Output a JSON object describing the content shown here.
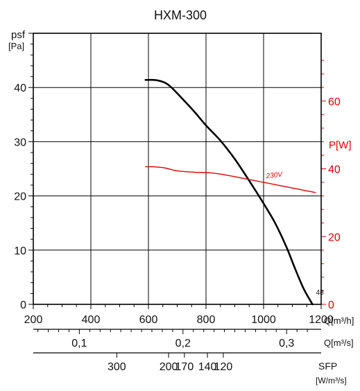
{
  "chart_data": {
    "type": "line",
    "title": "HXM-300",
    "x": {
      "label": "Q[m³/h]",
      "range": [
        200,
        1200
      ],
      "ticks": [
        "200",
        "400",
        "600",
        "800",
        "1000",
        "1200"
      ],
      "tick_values": [
        200,
        400,
        600,
        800,
        1000,
        1200
      ]
    },
    "x2": {
      "label": "Q[m³/s]",
      "ticks": [
        "0,1",
        "0,2",
        "0,3"
      ],
      "tick_values": [
        0.1,
        0.2,
        0.3
      ]
    },
    "sfp_axis": {
      "label_line1": "SFP",
      "label_line2": "[W/m³/s]",
      "ticks": [
        "300",
        "200",
        "170",
        "140",
        "120"
      ],
      "tick_positions_q_m3h": [
        490,
        670,
        725,
        805,
        860
      ]
    },
    "y_left": {
      "label_line1": "psf",
      "label_line2": "[Pa]",
      "range": [
        0,
        50
      ],
      "ticks": [
        "0",
        "10",
        "20",
        "30",
        "40"
      ],
      "tick_values": [
        0,
        10,
        20,
        30,
        40
      ]
    },
    "y_right": {
      "label": "P[W]",
      "range": [
        0,
        80
      ],
      "ticks": [
        "0",
        "20",
        "40",
        "60"
      ],
      "tick_values": [
        0,
        20,
        40,
        60
      ],
      "color": "#e00000"
    },
    "grid": true,
    "series": [
      {
        "axis": "left",
        "color": "#000000",
        "end_label": "48",
        "x": [
          590,
          620,
          640,
          660,
          680,
          720,
          760,
          800,
          850,
          900,
          950,
          1000,
          1040,
          1080,
          1110,
          1140,
          1170
        ],
        "y": [
          41.4,
          41.4,
          41.2,
          40.8,
          40.0,
          37.8,
          35.5,
          33.0,
          30.2,
          26.8,
          22.8,
          18.6,
          15.0,
          10.5,
          6.5,
          2.8,
          0
        ]
      },
      {
        "axis": "right",
        "name": "230V",
        "color": "#e00000",
        "x": [
          590,
          620,
          660,
          700,
          760,
          820,
          880,
          940,
          1000,
          1060,
          1120,
          1180
        ],
        "y": [
          40.6,
          40.6,
          40.2,
          39.4,
          39.0,
          38.8,
          38.0,
          37.0,
          36.0,
          35.0,
          34.0,
          33.0
        ]
      }
    ]
  }
}
